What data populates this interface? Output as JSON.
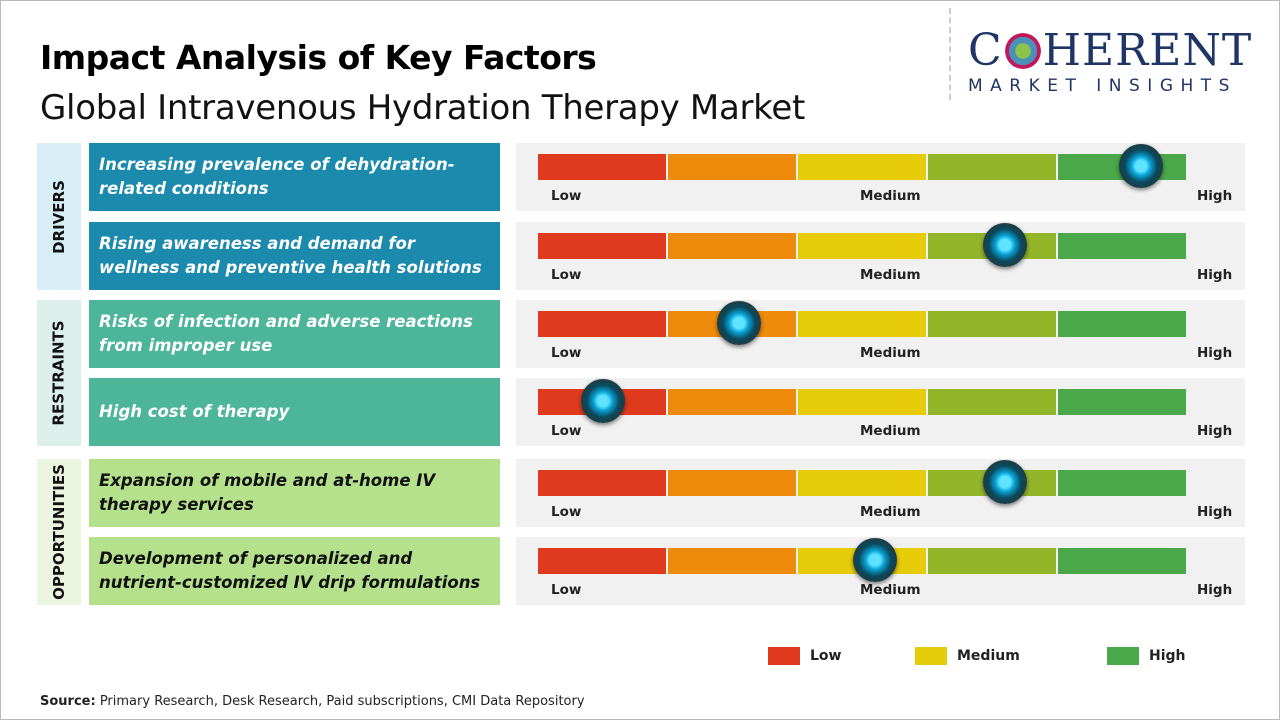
{
  "header": {
    "title": "Impact Analysis of Key Factors",
    "subtitle": "Global Intravenous Hydration Therapy Market"
  },
  "logo": {
    "main_left": "C",
    "main_right": "HERENT",
    "sub": "MARKET INSIGHTS"
  },
  "chart_data": {
    "type": "table",
    "scale_labels": [
      "Low",
      "Medium",
      "High"
    ],
    "segment_colors": [
      "#e03a1e",
      "#ee8a0c",
      "#e6cc0a",
      "#93b52a",
      "#4aa84a"
    ],
    "categories": [
      {
        "name": "DRIVERS",
        "color": "#1b8aad",
        "bg": "#d8eef7",
        "text_color": "#ffffff",
        "factors": [
          {
            "label": "Increasing prevalence of dehydration-related conditions",
            "impact_pct": 93
          },
          {
            "label": "Rising awareness and demand for wellness and preventive health solutions",
            "impact_pct": 72
          }
        ]
      },
      {
        "name": "RESTRAINTS",
        "color": "#4db59a",
        "bg": "#dcefea",
        "text_color": "#ffffff",
        "factors": [
          {
            "label": "Risks of infection and adverse reactions from improper use",
            "impact_pct": 31
          },
          {
            "label": "High cost of therapy",
            "impact_pct": 10
          }
        ]
      },
      {
        "name": "OPPORTUNITIES",
        "color": "#b5e08c",
        "bg": "#eaf6e0",
        "text_color": "#111111",
        "factors": [
          {
            "label": "Expansion of mobile and at-home IV therapy services",
            "impact_pct": 72
          },
          {
            "label": "Development of personalized and nutrient-customized IV drip formulations",
            "impact_pct": 52
          }
        ]
      }
    ],
    "legend": [
      {
        "label": "Low",
        "color": "#e03a1e"
      },
      {
        "label": "Medium",
        "color": "#e6cc0a"
      },
      {
        "label": "High",
        "color": "#4aa84a"
      }
    ]
  },
  "footer": {
    "source_label": "Source:",
    "source_text": " Primary Research, Desk Research, Paid subscriptions, CMI Data Repository"
  }
}
